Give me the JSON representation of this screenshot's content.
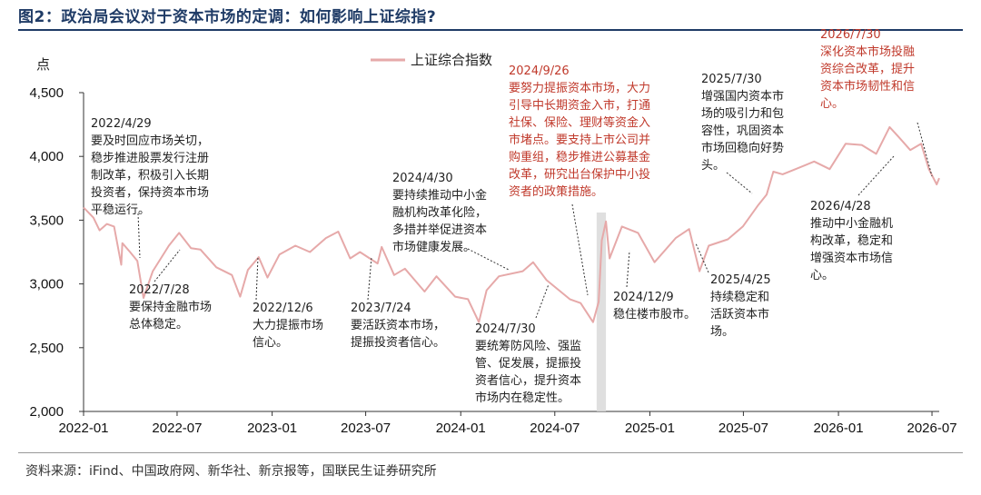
{
  "figure": {
    "title": "图2：政治局会议对于资本市场的定调：如何影响上证综指?",
    "source": "资料来源：iFind、中国政府网、新华社、新京报等，国联民生证券研究所"
  },
  "colors": {
    "line": "#e6a9a9",
    "title": "#1f3b66",
    "highlight_text": "#c0392b",
    "normal_text": "#222222",
    "shade": "#d9d9d9"
  },
  "chart_data": {
    "type": "line",
    "ylabel": "点",
    "ylim": [
      2000,
      4500
    ],
    "yticks": [
      2000,
      2500,
      3000,
      3500,
      4000,
      4500
    ],
    "ytick_labels": [
      "2,000",
      "2,500",
      "3,000",
      "3,500",
      "4,000",
      "4,500"
    ],
    "xlim": [
      "2022-01",
      "2026-07"
    ],
    "xticks": [
      "2022-01",
      "2022-07",
      "2023-01",
      "2023-07",
      "2024-01",
      "2024-07",
      "2025-01",
      "2025-07",
      "2026-01",
      "2026-07"
    ],
    "legend": "top-center",
    "grid": false,
    "series": [
      {
        "name": "上证综合指数",
        "points": [
          [
            "2022-01",
            3600
          ],
          [
            "2022-01-20",
            3520
          ],
          [
            "2022-02",
            3420
          ],
          [
            "2022-02-15",
            3470
          ],
          [
            "2022-03",
            3450
          ],
          [
            "2022-03-15",
            3150
          ],
          [
            "2022-03-17",
            3320
          ],
          [
            "2022-04-01",
            3250
          ],
          [
            "2022-04-15",
            3180
          ],
          [
            "2022-04-27",
            2890
          ],
          [
            "2022-05-15",
            3100
          ],
          [
            "2022-06-15",
            3300
          ],
          [
            "2022-07-05",
            3400
          ],
          [
            "2022-07-28",
            3280
          ],
          [
            "2022-08-15",
            3270
          ],
          [
            "2022-09-15",
            3130
          ],
          [
            "2022-10-15",
            3070
          ],
          [
            "2022-10-31",
            2900
          ],
          [
            "2022-11-15",
            3110
          ],
          [
            "2022-12-06",
            3210
          ],
          [
            "2022-12-23",
            3050
          ],
          [
            "2023-01-15",
            3230
          ],
          [
            "2023-02-15",
            3300
          ],
          [
            "2023-03-15",
            3250
          ],
          [
            "2023-04-15",
            3360
          ],
          [
            "2023-05-09",
            3410
          ],
          [
            "2023-06-01",
            3200
          ],
          [
            "2023-06-20",
            3250
          ],
          [
            "2023-07-24",
            3160
          ],
          [
            "2023-08-01",
            3290
          ],
          [
            "2023-08-25",
            3070
          ],
          [
            "2023-09-15",
            3120
          ],
          [
            "2023-10-23",
            2940
          ],
          [
            "2023-11-15",
            3060
          ],
          [
            "2023-12-21",
            2900
          ],
          [
            "2024-01-15",
            2880
          ],
          [
            "2024-02-05",
            2700
          ],
          [
            "2024-02-20",
            2950
          ],
          [
            "2024-03-15",
            3060
          ],
          [
            "2024-04-30",
            3100
          ],
          [
            "2024-05-20",
            3170
          ],
          [
            "2024-06-15",
            3030
          ],
          [
            "2024-07-30",
            2880
          ],
          [
            "2024-08-20",
            2850
          ],
          [
            "2024-09-13",
            2700
          ],
          [
            "2024-09-24",
            2860
          ],
          [
            "2024-09-30",
            3340
          ],
          [
            "2024-10-08",
            3490
          ],
          [
            "2024-10-15",
            3200
          ],
          [
            "2024-11-08",
            3450
          ],
          [
            "2024-12-09",
            3400
          ],
          [
            "2025-01-10",
            3170
          ],
          [
            "2025-02-20",
            3360
          ],
          [
            "2025-03-18",
            3430
          ],
          [
            "2025-04-07",
            3100
          ],
          [
            "2025-04-25",
            3300
          ],
          [
            "2025-06-01",
            3350
          ],
          [
            "2025-06-30",
            3450
          ],
          [
            "2025-07-30",
            3620
          ],
          [
            "2025-08-15",
            3700
          ],
          [
            "2025-08-28",
            3880
          ],
          [
            "2025-09-15",
            3860
          ],
          [
            "2025-10-10",
            3900
          ],
          [
            "2025-11-15",
            3960
          ],
          [
            "2025-12-15",
            3900
          ],
          [
            "2026-01-15",
            4100
          ],
          [
            "2026-02-15",
            4090
          ],
          [
            "2026-03-15",
            4020
          ],
          [
            "2026-04-10",
            4230
          ],
          [
            "2026-04-28",
            4150
          ],
          [
            "2026-05-20",
            4050
          ],
          [
            "2026-06-10",
            4100
          ],
          [
            "2026-06-25",
            3900
          ],
          [
            "2026-07-10",
            3780
          ],
          [
            "2026-07-15",
            3830
          ]
        ]
      }
    ],
    "annotations": [
      {
        "date": "2022/4/29",
        "lines": [
          "2022/4/29",
          "要及时回应市场关切，",
          "稳步推进股票发行注册",
          "制改革，积极引入长期",
          "投资者，保持资本市场",
          "平稳运行。"
        ],
        "highlight": false
      },
      {
        "date": "2022/7/28",
        "lines": [
          "2022/7/28",
          "要保持金融市场",
          "总体稳定。"
        ],
        "highlight": false
      },
      {
        "date": "2022/12/6",
        "lines": [
          "2022/12/6",
          "大力提振市场",
          "信心。"
        ],
        "highlight": false
      },
      {
        "date": "2023/7/24",
        "lines": [
          "2023/7/24",
          "要活跃资本市场，",
          "提振投资者信心。"
        ],
        "highlight": false
      },
      {
        "date": "2024/4/30",
        "lines": [
          "2024/4/30",
          "要持续推动中小金",
          "融机构改革化险，",
          "多措并举促进资本",
          "市场健康发展。"
        ],
        "highlight": false
      },
      {
        "date": "2024/7/30",
        "lines": [
          "2024/7/30",
          "要统筹防风险、强监",
          "管、促发展，提振投",
          "资者信心，提升资本",
          "市场内在稳定性。"
        ],
        "highlight": false
      },
      {
        "date": "2024/9/26",
        "lines": [
          "2024/9/26",
          "要努力提振资本市场，大力",
          "引导中长期资金入市，打通",
          "社保、保险、理财等资金入",
          "市堵点。要支持上市公司并",
          "购重组，稳步推进公募基金",
          "改革，研究出台保护中小投",
          "资者的政策措施。"
        ],
        "highlight": true
      },
      {
        "date": "2024/12/9",
        "lines": [
          "2024/12/9",
          "稳住楼市股市。"
        ],
        "highlight": false
      },
      {
        "date": "2025/4/25",
        "lines": [
          "2025/4/25",
          "持续稳定和",
          "活跃资本市",
          "场。"
        ],
        "highlight": false
      },
      {
        "date": "2025/7/30",
        "lines": [
          "2025/7/30",
          "增强国内资本市",
          "场的吸引力和包",
          "容性，巩固资本",
          "市场回稳向好势",
          "头。"
        ],
        "highlight": false
      },
      {
        "date": "2026/4/28",
        "lines": [
          "2026/4/28",
          "推动中小金融机",
          "构改革，稳定和",
          "增强资本市场信",
          "心。"
        ],
        "highlight": false
      },
      {
        "date": "2026/7/30",
        "lines": [
          "2026/7/30",
          "深化资本市场投融",
          "资综合改革，提升",
          "资本市场韧性和信",
          "心。"
        ],
        "highlight": true
      }
    ]
  }
}
